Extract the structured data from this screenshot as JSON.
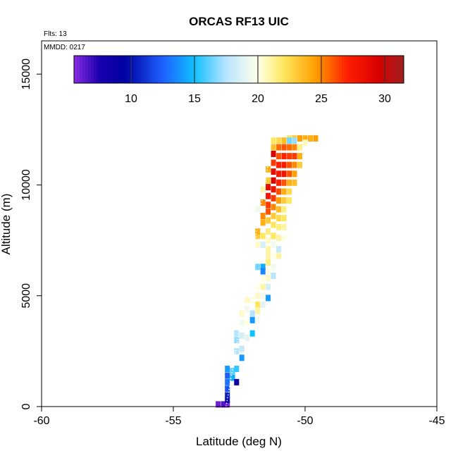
{
  "chart_data": {
    "type": "heatmap",
    "title": "ORCAS RF13 UIC",
    "notes": {
      "flights": "Flts: 13",
      "date": "MMDD: 0217"
    },
    "xlabel": "Latitude (deg N)",
    "ylabel": "Altitude (m)",
    "xlim": [
      -60,
      -45
    ],
    "ylim": [
      0,
      16500
    ],
    "x_ticks": [
      -60,
      -55,
      -50,
      -45
    ],
    "y_ticks": [
      0,
      5000,
      10000,
      15000
    ],
    "grid": false,
    "colorbar": {
      "placement": "top-inside",
      "range": [
        5.5,
        31.5
      ],
      "ticks": [
        10,
        15,
        20,
        25,
        30
      ],
      "stops": [
        {
          "v": 5.5,
          "c": "#8a2be2"
        },
        {
          "v": 7.5,
          "c": "#1a00b0"
        },
        {
          "v": 9.5,
          "c": "#0000a0"
        },
        {
          "v": 12.5,
          "c": "#1e60ff"
        },
        {
          "v": 15.0,
          "c": "#10c0ff"
        },
        {
          "v": 17.5,
          "c": "#b8e4ff"
        },
        {
          "v": 20.0,
          "c": "#ffffe8"
        },
        {
          "v": 22.0,
          "c": "#ffe860"
        },
        {
          "v": 24.5,
          "c": "#ffa000"
        },
        {
          "v": 27.0,
          "c": "#ff2000"
        },
        {
          "v": 29.5,
          "c": "#d80000"
        },
        {
          "v": 31.5,
          "c": "#a02020"
        }
      ]
    },
    "cells": [
      [
        -53.3,
        100,
        6.0
      ],
      [
        -53.1,
        100,
        6.5
      ],
      [
        -52.95,
        100,
        5.8
      ],
      [
        -52.95,
        300,
        9.0
      ],
      [
        -52.95,
        500,
        10.5
      ],
      [
        -52.95,
        800,
        12.0
      ],
      [
        -52.95,
        1100,
        13.0
      ],
      [
        -52.95,
        1400,
        12.5
      ],
      [
        -52.95,
        1700,
        14.0
      ],
      [
        -52.75,
        1300,
        14.5
      ],
      [
        -52.75,
        1600,
        16.0
      ],
      [
        -52.6,
        1700,
        15.5
      ],
      [
        -52.6,
        1100,
        8.5
      ],
      [
        -52.4,
        2200,
        14.0
      ],
      [
        -52.6,
        2500,
        17.5
      ],
      [
        -52.6,
        3000,
        17.0
      ],
      [
        -52.6,
        3300,
        17.5
      ],
      [
        -52.4,
        2600,
        18.0
      ],
      [
        -52.4,
        3200,
        18.5
      ],
      [
        -52.2,
        3100,
        19.0
      ],
      [
        -52.0,
        3300,
        15.0
      ],
      [
        -52.4,
        3800,
        19.5
      ],
      [
        -52.4,
        4200,
        20.5
      ],
      [
        -52.2,
        3800,
        20.0
      ],
      [
        -52.2,
        4400,
        19.5
      ],
      [
        -52.2,
        4800,
        20.5
      ],
      [
        -52.0,
        4200,
        17.5
      ],
      [
        -52.0,
        3900,
        14.0
      ],
      [
        -51.8,
        3900,
        19.5
      ],
      [
        -51.8,
        4300,
        21.0
      ],
      [
        -51.8,
        4600,
        22.0
      ],
      [
        -51.8,
        5000,
        20.5
      ],
      [
        -51.6,
        4600,
        19.0
      ],
      [
        -51.6,
        5000,
        19.5
      ],
      [
        -51.4,
        4900,
        14.0
      ],
      [
        -52.0,
        4800,
        20.0
      ],
      [
        -51.8,
        5400,
        20.0
      ],
      [
        -51.6,
        5400,
        21.0
      ],
      [
        -51.6,
        5800,
        20.0
      ],
      [
        -51.4,
        5400,
        18.5
      ],
      [
        -51.4,
        5800,
        20.5
      ],
      [
        -51.4,
        6100,
        20.0
      ],
      [
        -51.2,
        5900,
        17.5
      ],
      [
        -51.2,
        6300,
        19.5
      ],
      [
        -51.6,
        6300,
        14.5
      ],
      [
        -51.6,
        6100,
        13.5
      ],
      [
        -51.8,
        6300,
        16.5
      ],
      [
        -51.4,
        6500,
        21.5
      ],
      [
        -51.4,
        6800,
        21.0
      ],
      [
        -51.2,
        6800,
        20.0
      ],
      [
        -51.0,
        6800,
        21.0
      ],
      [
        -51.0,
        7100,
        18.0
      ],
      [
        -51.4,
        7100,
        21.0
      ],
      [
        -51.2,
        7300,
        19.5
      ],
      [
        -51.4,
        7500,
        20.5
      ],
      [
        -51.6,
        7300,
        18.5
      ],
      [
        -51.8,
        7300,
        20.5
      ],
      [
        -51.8,
        7700,
        23.0
      ],
      [
        -51.8,
        7900,
        24.0
      ],
      [
        -51.6,
        7700,
        22.0
      ],
      [
        -51.4,
        7900,
        21.5
      ],
      [
        -51.2,
        7700,
        22.0
      ],
      [
        -51.0,
        7600,
        21.0
      ],
      [
        -50.8,
        7600,
        20.0
      ],
      [
        -50.8,
        8100,
        21.0
      ],
      [
        -51.0,
        8100,
        21.5
      ],
      [
        -51.2,
        8200,
        22.0
      ],
      [
        -51.6,
        8300,
        24.0
      ],
      [
        -51.4,
        8400,
        23.0
      ],
      [
        -51.6,
        8600,
        25.0
      ],
      [
        -51.4,
        8800,
        26.0
      ],
      [
        -51.2,
        8600,
        23.0
      ],
      [
        -51.0,
        8500,
        22.5
      ],
      [
        -50.8,
        8500,
        22.0
      ],
      [
        -50.8,
        8900,
        21.5
      ],
      [
        -51.0,
        8900,
        23.5
      ],
      [
        -51.2,
        9000,
        25.0
      ],
      [
        -51.4,
        9100,
        26.5
      ],
      [
        -51.6,
        9200,
        25.0
      ],
      [
        -51.4,
        9500,
        28.0
      ],
      [
        -51.2,
        9400,
        26.5
      ],
      [
        -51.0,
        9300,
        24.5
      ],
      [
        -50.8,
        9300,
        23.0
      ],
      [
        -50.6,
        9300,
        22.0
      ],
      [
        -50.6,
        9700,
        22.5
      ],
      [
        -50.8,
        9700,
        24.0
      ],
      [
        -51.0,
        9700,
        26.0
      ],
      [
        -51.2,
        9800,
        28.0
      ],
      [
        -51.4,
        9900,
        28.5
      ],
      [
        -51.2,
        10200,
        29.5
      ],
      [
        -51.0,
        10100,
        27.0
      ],
      [
        -50.8,
        10100,
        26.0
      ],
      [
        -50.6,
        10100,
        24.0
      ],
      [
        -50.4,
        10100,
        23.5
      ],
      [
        -50.4,
        10500,
        24.5
      ],
      [
        -50.6,
        10500,
        26.0
      ],
      [
        -50.8,
        10500,
        28.0
      ],
      [
        -51.0,
        10500,
        27.5
      ],
      [
        -51.2,
        10600,
        28.5
      ],
      [
        -51.4,
        10700,
        24.0
      ],
      [
        -51.2,
        11000,
        26.5
      ],
      [
        -51.0,
        10900,
        27.0
      ],
      [
        -50.8,
        10900,
        27.5
      ],
      [
        -50.6,
        10900,
        26.0
      ],
      [
        -50.4,
        10900,
        25.0
      ],
      [
        -50.2,
        10900,
        23.0
      ],
      [
        -50.2,
        11300,
        24.0
      ],
      [
        -50.4,
        11300,
        26.5
      ],
      [
        -50.6,
        11300,
        26.5
      ],
      [
        -50.8,
        11300,
        27.0
      ],
      [
        -51.0,
        11300,
        26.0
      ],
      [
        -51.2,
        11400,
        29.5
      ],
      [
        -51.2,
        11700,
        23.5
      ],
      [
        -51.0,
        11700,
        25.5
      ],
      [
        -50.8,
        11700,
        26.0
      ],
      [
        -50.6,
        11700,
        25.5
      ],
      [
        -50.4,
        11700,
        25.0
      ],
      [
        -50.2,
        11700,
        21.5
      ],
      [
        -51.2,
        12000,
        22.0
      ],
      [
        -51.0,
        12000,
        22.5
      ],
      [
        -50.8,
        12000,
        23.5
      ],
      [
        -50.6,
        12100,
        22.0
      ],
      [
        -50.4,
        12100,
        23.0
      ],
      [
        -50.2,
        12100,
        24.5
      ],
      [
        -50.0,
        12100,
        24.0
      ],
      [
        -49.8,
        12100,
        24.0
      ],
      [
        -49.6,
        12100,
        24.5
      ],
      [
        -50.6,
        12000,
        16.5
      ],
      [
        -50.4,
        12000,
        17.0
      ],
      [
        -50.0,
        11900,
        20.5
      ],
      [
        -51.4,
        10200,
        23.0
      ],
      [
        -51.6,
        9800,
        21.0
      ],
      [
        -51.8,
        8900,
        19.5
      ]
    ]
  }
}
